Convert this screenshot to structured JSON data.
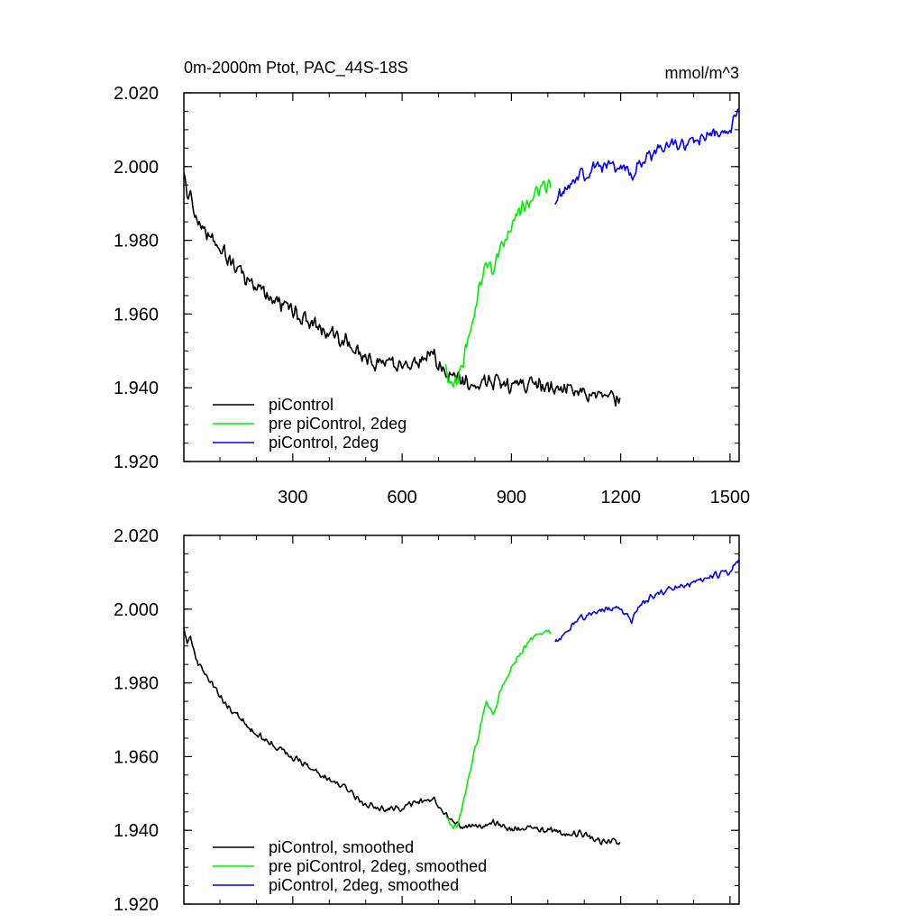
{
  "colors": {
    "piControl": "#000000",
    "pre_piControl_2deg": "#00ee00",
    "piControl_2deg": "#0000ee"
  },
  "chart_data": [
    {
      "type": "line",
      "title": "0m-2000m Ptot, PAC_44S-18S",
      "units": "mmol/m^3",
      "xlabel": "",
      "ylabel": "",
      "xlim": [
        1,
        1525
      ],
      "ylim": [
        1.92,
        2.02
      ],
      "xticks": [
        300,
        600,
        900,
        1200,
        1500
      ],
      "xtick_labels": [
        "300",
        "600",
        "900",
        "1200",
        "1500"
      ],
      "yticks": [
        1.92,
        1.94,
        1.96,
        1.98,
        2.0,
        2.02
      ],
      "ytick_labels": [
        "1.920",
        "1.940",
        "1.960",
        "1.980",
        "2.000",
        "2.020"
      ],
      "legend_position": "bottom-left",
      "series": [
        {
          "name": "piControl",
          "color_key": "piControl",
          "noise": 0.0028,
          "x": [
            1,
            10,
            20,
            40,
            60,
            90,
            120,
            160,
            200,
            250,
            300,
            350,
            400,
            450,
            500,
            550,
            600,
            650,
            690,
            700,
            720,
            740,
            760,
            800,
            850,
            900,
            950,
            1000,
            1050,
            1100,
            1150,
            1200
          ],
          "y": [
            1.997,
            1.991,
            1.992,
            1.986,
            1.983,
            1.979,
            1.975,
            1.971,
            1.967,
            1.964,
            1.961,
            1.958,
            1.955,
            1.952,
            1.948,
            1.946,
            1.946,
            1.948,
            1.949,
            1.947,
            1.944,
            1.943,
            1.942,
            1.941,
            1.942,
            1.94,
            1.941,
            1.94,
            1.94,
            1.939,
            1.937,
            1.937
          ]
        },
        {
          "name": "pre piControl, 2deg",
          "color_key": "pre_piControl_2deg",
          "noise": 0.0024,
          "x": [
            720,
            735,
            750,
            770,
            790,
            810,
            830,
            850,
            870,
            890,
            910,
            930,
            960,
            990,
            1010
          ],
          "y": [
            1.945,
            1.941,
            1.941,
            1.948,
            1.958,
            1.966,
            1.975,
            1.971,
            1.978,
            1.982,
            1.986,
            1.989,
            1.992,
            1.995,
            1.995
          ]
        },
        {
          "name": "piControl, 2deg",
          "color_key": "piControl_2deg",
          "noise": 0.0022,
          "x": [
            1020,
            1050,
            1080,
            1120,
            1160,
            1200,
            1230,
            1260,
            1300,
            1350,
            1400,
            1450,
            1500,
            1525
          ],
          "y": [
            1.991,
            1.994,
            1.997,
            1.999,
            2.0,
            2.0,
            1.998,
            2.002,
            2.004,
            2.006,
            2.007,
            2.009,
            2.01,
            2.015
          ]
        }
      ],
      "legend": [
        "piControl",
        "pre piControl, 2deg",
        "piControl, 2deg"
      ]
    },
    {
      "type": "line",
      "title": "",
      "xlabel": "",
      "ylabel": "",
      "xlim": [
        1,
        1525
      ],
      "ylim": [
        1.92,
        2.02
      ],
      "xticks": [
        300,
        600,
        900,
        1200,
        1500
      ],
      "yticks": [
        1.92,
        1.94,
        1.96,
        1.98,
        2.0,
        2.02
      ],
      "ytick_labels": [
        "1.920",
        "1.940",
        "1.960",
        "1.980",
        "2.000",
        "2.020"
      ],
      "legend_position": "bottom-left",
      "series": [
        {
          "name": "piControl, smoothed",
          "color_key": "piControl",
          "noise": 0.0011,
          "x": [
            1,
            10,
            20,
            40,
            60,
            90,
            120,
            160,
            200,
            250,
            300,
            350,
            400,
            450,
            500,
            550,
            600,
            650,
            690,
            700,
            720,
            740,
            760,
            800,
            850,
            900,
            950,
            1000,
            1050,
            1100,
            1150,
            1200
          ],
          "y": [
            1.995,
            1.991,
            1.992,
            1.985,
            1.982,
            1.978,
            1.974,
            1.97,
            1.966,
            1.963,
            1.96,
            1.957,
            1.954,
            1.951,
            1.947,
            1.946,
            1.946,
            1.948,
            1.948,
            1.946,
            1.944,
            1.942,
            1.941,
            1.941,
            1.942,
            1.94,
            1.941,
            1.94,
            1.939,
            1.939,
            1.937,
            1.937
          ]
        },
        {
          "name": "pre piControl, 2deg, smoothed",
          "color_key": "pre_piControl_2deg",
          "noise": 0.001,
          "x": [
            720,
            735,
            750,
            770,
            790,
            810,
            830,
            850,
            870,
            890,
            910,
            930,
            960,
            990,
            1010
          ],
          "y": [
            1.944,
            1.941,
            1.941,
            1.948,
            1.958,
            1.966,
            1.975,
            1.971,
            1.978,
            1.982,
            1.986,
            1.989,
            1.992,
            1.994,
            1.994
          ]
        },
        {
          "name": "piControl, 2deg, smoothed",
          "color_key": "piControl_2deg",
          "noise": 0.001,
          "x": [
            1020,
            1050,
            1080,
            1120,
            1160,
            1200,
            1230,
            1260,
            1300,
            1350,
            1400,
            1450,
            1500,
            1525
          ],
          "y": [
            1.991,
            1.994,
            1.997,
            1.999,
            2.0,
            2.0,
            1.997,
            2.002,
            2.004,
            2.006,
            2.007,
            2.009,
            2.01,
            2.014
          ]
        }
      ],
      "legend": [
        "piControl, smoothed",
        "pre piControl, 2deg, smoothed",
        "piControl, 2deg, smoothed"
      ]
    }
  ]
}
